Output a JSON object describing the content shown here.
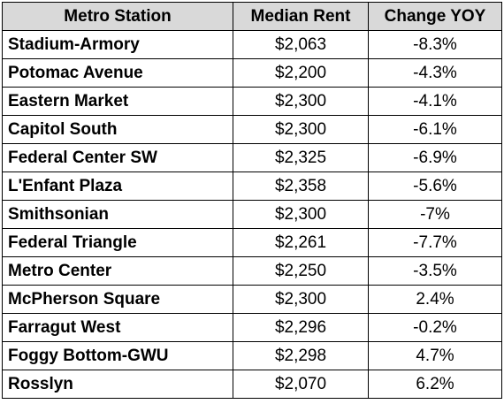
{
  "chart_data": {
    "type": "table",
    "columns": [
      "Metro Station",
      "Median Rent",
      "Change YOY"
    ],
    "rows": [
      {
        "station": "Stadium-Armory",
        "rent": "$2,063",
        "change": "-8.3%"
      },
      {
        "station": "Potomac Avenue",
        "rent": "$2,200",
        "change": "-4.3%"
      },
      {
        "station": "Eastern Market",
        "rent": "$2,300",
        "change": "-4.1%"
      },
      {
        "station": "Capitol South",
        "rent": "$2,300",
        "change": "-6.1%"
      },
      {
        "station": "Federal Center SW",
        "rent": "$2,325",
        "change": "-6.9%"
      },
      {
        "station": "L'Enfant Plaza",
        "rent": "$2,358",
        "change": "-5.6%"
      },
      {
        "station": "Smithsonian",
        "rent": "$2,300",
        "change": "-7%"
      },
      {
        "station": "Federal Triangle",
        "rent": "$2,261",
        "change": "-7.7%"
      },
      {
        "station": "Metro Center",
        "rent": "$2,250",
        "change": "-3.5%"
      },
      {
        "station": "McPherson Square",
        "rent": "$2,300",
        "change": "2.4%"
      },
      {
        "station": "Farragut West",
        "rent": "$2,296",
        "change": "-0.2%"
      },
      {
        "station": "Foggy Bottom-GWU",
        "rent": "$2,298",
        "change": "4.7%"
      },
      {
        "station": "Rosslyn",
        "rent": "$2,070",
        "change": "6.2%"
      }
    ]
  },
  "colors": {
    "header_bg": "#d9d9d9",
    "border": "#000000",
    "text": "#000000"
  }
}
